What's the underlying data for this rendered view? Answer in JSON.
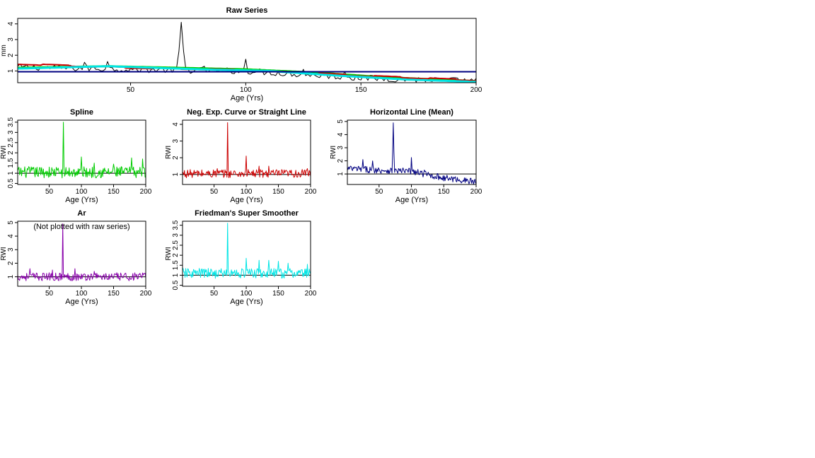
{
  "window": {
    "background": "#ffffff"
  },
  "chart_data": [
    {
      "id": "raw",
      "type": "line",
      "title": "Raw Series",
      "xlabel": "Age (Yrs)",
      "ylabel": "mm",
      "xlim": [
        1,
        200
      ],
      "ylim": [
        0.25,
        4.35
      ],
      "xticks": [
        50,
        100,
        150,
        200
      ],
      "yticks": [
        1,
        2,
        3,
        4
      ],
      "ytick_labels": [
        "1",
        "2",
        "3",
        "4"
      ],
      "series": [
        {
          "name": "raw",
          "color": "#000000",
          "width": 1,
          "kind": "raw",
          "spike": {
            "x": 72,
            "y": 4.1
          },
          "peaks": [
            [
              30,
              1.55
            ],
            [
              40,
              1.6
            ],
            [
              82,
              1.3
            ],
            [
              100,
              1.75
            ],
            [
              125,
              1.1
            ],
            [
              143,
              0.95
            ],
            [
              148,
              0.75
            ]
          ],
          "trend": [
            [
              1,
              1.25
            ],
            [
              50,
              1.1
            ],
            [
              100,
              1.0
            ],
            [
              150,
              0.55
            ],
            [
              200,
              0.35
            ]
          ],
          "amp": 0.2
        },
        {
          "name": "Spline",
          "color": "#00cc00",
          "width": 3,
          "kind": "curve",
          "points": [
            [
              1,
              1.2
            ],
            [
              40,
              1.3
            ],
            [
              70,
              1.2
            ],
            [
              100,
              1.1
            ],
            [
              130,
              0.9
            ],
            [
              160,
              0.6
            ],
            [
              200,
              0.35
            ]
          ]
        },
        {
          "name": "Neg. Exp. Curve or Straight Line",
          "color": "#cc0000",
          "width": 2,
          "kind": "step",
          "points": [
            [
              1,
              1.45
            ],
            [
              50,
              1.2
            ],
            [
              100,
              1.05
            ],
            [
              150,
              0.7
            ],
            [
              200,
              0.4
            ]
          ]
        },
        {
          "name": "Friedman's Super Smoother",
          "color": "#00e5e5",
          "width": 3,
          "kind": "curve",
          "points": [
            [
              1,
              1.15
            ],
            [
              40,
              1.3
            ],
            [
              80,
              1.1
            ],
            [
              110,
              1.0
            ],
            [
              140,
              0.7
            ],
            [
              170,
              0.45
            ],
            [
              200,
              0.3
            ]
          ]
        },
        {
          "name": "Horizontal Line (Mean)",
          "color": "#000080",
          "width": 2,
          "kind": "hline",
          "value": 0.95
        }
      ]
    },
    {
      "id": "spline",
      "type": "line",
      "title": "Spline",
      "xlabel": "Age (Yrs)",
      "ylabel": "RWI",
      "xlim": [
        1,
        200
      ],
      "ylim": [
        0.45,
        3.6
      ],
      "xticks": [
        50,
        100,
        150,
        200
      ],
      "yticks": [
        0.5,
        1,
        1.5,
        2,
        2.5,
        3,
        3.5
      ],
      "ytick_labels": [
        "0.5",
        "1",
        "1.5",
        "2",
        "2.5",
        "3",
        "3.5"
      ],
      "refline": 1.0,
      "series": [
        {
          "name": "Spline",
          "color": "#00cc00",
          "width": 1,
          "kind": "noise",
          "base": 1.05,
          "amp": 0.28,
          "spike": {
            "x": 72,
            "y": 3.5
          },
          "peaks": [
            [
              100,
              1.8
            ],
            [
              178,
              1.75
            ],
            [
              195,
              1.7
            ],
            [
              120,
              1.5
            ],
            [
              150,
              1.45
            ]
          ]
        }
      ]
    },
    {
      "id": "negexp",
      "type": "line",
      "title": "Neg. Exp. Curve or Straight Line",
      "xlabel": "Age (Yrs)",
      "ylabel": "RWI",
      "xlim": [
        1,
        200
      ],
      "ylim": [
        0.4,
        4.25
      ],
      "xticks": [
        50,
        100,
        150,
        200
      ],
      "yticks": [
        1,
        2,
        3,
        4
      ],
      "ytick_labels": [
        "1",
        "2",
        "3",
        "4"
      ],
      "refline": 1.0,
      "series": [
        {
          "name": "Neg. Exp. Curve or Straight Line",
          "color": "#cc0000",
          "width": 1,
          "kind": "noise",
          "base": 1.05,
          "amp": 0.25,
          "spike": {
            "x": 71,
            "y": 4.1
          },
          "peaks": [
            [
              100,
              2.1
            ],
            [
              120,
              1.5
            ],
            [
              135,
              1.5
            ],
            [
              195,
              1.35
            ],
            [
              55,
              1.35
            ]
          ]
        }
      ]
    },
    {
      "id": "mean",
      "type": "line",
      "title": "Horizontal Line (Mean)",
      "xlabel": "Age (Yrs)",
      "ylabel": "RWI",
      "xlim": [
        1,
        200
      ],
      "ylim": [
        0.2,
        5.1
      ],
      "xticks": [
        50,
        100,
        150,
        200
      ],
      "yticks": [
        1,
        2,
        3,
        4,
        5
      ],
      "ytick_labels": [
        "1",
        "2",
        "3",
        "4",
        "5"
      ],
      "refline": 1.0,
      "series": [
        {
          "name": "Horizontal Line (Mean)",
          "color": "#000080",
          "width": 1,
          "kind": "raw",
          "spike": {
            "x": 72,
            "y": 4.9
          },
          "peaks": [
            [
              25,
              2.1
            ],
            [
              40,
              2.0
            ],
            [
              100,
              2.25
            ],
            [
              120,
              1.3
            ]
          ],
          "trend": [
            [
              1,
              1.4
            ],
            [
              50,
              1.3
            ],
            [
              100,
              1.2
            ],
            [
              150,
              0.7
            ],
            [
              200,
              0.4
            ]
          ],
          "amp": 0.25
        }
      ]
    },
    {
      "id": "ar",
      "type": "line",
      "title": "Ar",
      "annotation": "(Not plotted with raw series)",
      "xlabel": "Age (Yrs)",
      "ylabel": "RWI",
      "xlim": [
        1,
        200
      ],
      "ylim": [
        0.3,
        5.1
      ],
      "xticks": [
        50,
        100,
        150,
        200
      ],
      "yticks": [
        1,
        2,
        3,
        4,
        5
      ],
      "ytick_labels": [
        "1",
        "2",
        "3",
        "4",
        "5"
      ],
      "refline": 1.0,
      "series": [
        {
          "name": "Ar",
          "color": "#8800aa",
          "width": 1,
          "kind": "noise",
          "base": 1.0,
          "amp": 0.3,
          "spike": {
            "x": 71,
            "y": 4.9
          },
          "peaks": [
            [
              20,
              1.6
            ],
            [
              55,
              1.5
            ],
            [
              90,
              1.6
            ],
            [
              120,
              1.4
            ]
          ]
        }
      ]
    },
    {
      "id": "friedman",
      "type": "line",
      "title": "Friedman's Super Smoother",
      "xlabel": "Age (Yrs)",
      "ylabel": "RWI",
      "xlim": [
        1,
        200
      ],
      "ylim": [
        0.45,
        3.7
      ],
      "xticks": [
        50,
        100,
        150,
        200
      ],
      "yticks": [
        0.5,
        1,
        1.5,
        2,
        2.5,
        3,
        3.5
      ],
      "ytick_labels": [
        "0.5",
        "1",
        "1.5",
        "2",
        "2.5",
        "3",
        "3.5"
      ],
      "refline": 1.0,
      "series": [
        {
          "name": "Friedman's Super Smoother",
          "color": "#00e5e5",
          "width": 1,
          "kind": "noise",
          "base": 1.1,
          "amp": 0.25,
          "spike": {
            "x": 71,
            "y": 3.6
          },
          "peaks": [
            [
              100,
              1.85
            ],
            [
              120,
              1.75
            ],
            [
              135,
              1.75
            ],
            [
              150,
              1.7
            ],
            [
              165,
              1.6
            ],
            [
              195,
              1.55
            ]
          ]
        }
      ]
    }
  ]
}
